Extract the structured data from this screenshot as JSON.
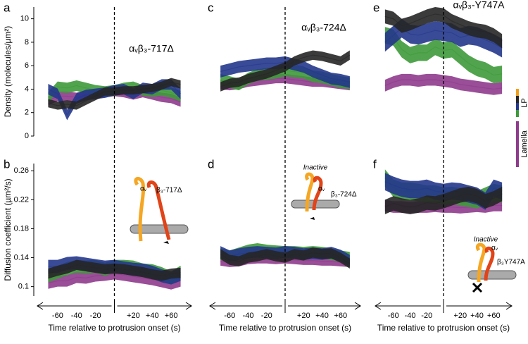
{
  "chart_data": [
    {
      "type": "band",
      "panel": "a",
      "title": "αᵥβ₃-717Δ",
      "ylabel": "Density (molecules/µm²)",
      "x": [
        -70,
        -60,
        -50,
        -40,
        -30,
        -20,
        -10,
        0,
        10,
        20,
        30,
        40,
        50,
        60,
        70
      ],
      "xlim": [
        -80,
        80
      ],
      "ylim": [
        0,
        11
      ],
      "yticks": [
        0,
        2,
        4,
        6,
        8,
        10
      ],
      "series": [
        {
          "color": "#8e3b8c",
          "error": 0.4,
          "values": [
            3.0,
            3.4,
            3.4,
            3.3,
            3.5,
            3.6,
            3.7,
            3.8,
            3.7,
            3.5,
            3.7,
            3.5,
            3.3,
            3.2,
            2.9
          ]
        },
        {
          "color": "#3e9a3a",
          "error": 0.45,
          "values": [
            3.3,
            4.2,
            4.1,
            4.3,
            4.1,
            3.9,
            3.8,
            3.9,
            4.1,
            4.2,
            3.9,
            3.8,
            3.9,
            3.7,
            3.4
          ]
        },
        {
          "color": "#24378c",
          "error": 0.45,
          "values": [
            4.0,
            3.6,
            1.8,
            3.2,
            3.5,
            3.6,
            3.7,
            3.9,
            4.0,
            3.6,
            4.1,
            4.0,
            4.4,
            4.4,
            3.6
          ]
        },
        {
          "color": "#262626",
          "error": 0.35,
          "values": [
            2.8,
            2.6,
            2.7,
            2.6,
            3.0,
            3.4,
            3.8,
            3.8,
            3.9,
            3.9,
            4.0,
            4.1,
            4.3,
            4.6,
            4.4
          ]
        }
      ]
    },
    {
      "type": "band",
      "panel": "b",
      "ylabel": "Diffusion coefficient (µm²/s)",
      "xlabel": "Time relative to protrusion onset (s)",
      "annotations": [
        "αᵥ",
        "β₃-717Δ"
      ],
      "x": [
        -70,
        -60,
        -50,
        -40,
        -30,
        -20,
        -10,
        0,
        10,
        20,
        30,
        40,
        50,
        60,
        70
      ],
      "xlim": [
        -80,
        80
      ],
      "ylim": [
        0.087,
        0.27
      ],
      "yticks": [
        0.1,
        0.14,
        0.18,
        0.22,
        0.26
      ],
      "xticks": [
        -60,
        -40,
        -20,
        {
          "value": 20,
          "label": "+20"
        },
        {
          "value": 40,
          "label": "+40"
        },
        {
          "value": 60,
          "label": "+60"
        }
      ],
      "series": [
        {
          "color": "#8e3b8c",
          "error": 0.008,
          "values": [
            0.105,
            0.108,
            0.108,
            0.113,
            0.112,
            0.115,
            0.116,
            0.118,
            0.116,
            0.114,
            0.112,
            0.11,
            0.107,
            0.104,
            0.108
          ]
        },
        {
          "color": "#3e9a3a",
          "error": 0.009,
          "values": [
            0.115,
            0.12,
            0.125,
            0.128,
            0.127,
            0.128,
            0.124,
            0.128,
            0.128,
            0.127,
            0.123,
            0.122,
            0.118,
            0.112,
            0.12
          ]
        },
        {
          "color": "#24378c",
          "error": 0.009,
          "values": [
            0.128,
            0.128,
            0.132,
            0.133,
            0.131,
            0.129,
            0.127,
            0.128,
            0.126,
            0.124,
            0.123,
            0.12,
            0.115,
            0.112,
            0.117
          ]
        },
        {
          "color": "#262626",
          "error": 0.007,
          "values": [
            0.118,
            0.122,
            0.125,
            0.13,
            0.128,
            0.126,
            0.124,
            0.125,
            0.124,
            0.122,
            0.12,
            0.117,
            0.115,
            0.118,
            0.119
          ]
        }
      ]
    },
    {
      "type": "band",
      "panel": "c",
      "title": "αᵥβ₃-724Δ",
      "x": [
        -70,
        -60,
        -50,
        -40,
        -30,
        -20,
        -10,
        0,
        10,
        20,
        30,
        40,
        50,
        60,
        70
      ],
      "xlim": [
        -80,
        80
      ],
      "ylim": [
        0,
        11
      ],
      "series": [
        {
          "color": "#8e3b8c",
          "error": 0.4,
          "values": [
            4.4,
            4.3,
            4.4,
            4.6,
            4.7,
            4.8,
            4.9,
            4.9,
            4.8,
            4.7,
            4.6,
            4.6,
            4.5,
            4.4,
            4.3
          ]
        },
        {
          "color": "#3e9a3a",
          "error": 0.5,
          "values": [
            4.8,
            4.6,
            4.4,
            4.9,
            5.2,
            5.3,
            5.4,
            5.6,
            5.5,
            5.4,
            5.1,
            5.0,
            4.8,
            4.6,
            4.5
          ]
        },
        {
          "color": "#24378c",
          "error": 0.5,
          "values": [
            5.5,
            5.7,
            5.9,
            6.0,
            6.1,
            6.2,
            6.2,
            6.3,
            6.1,
            5.9,
            5.5,
            5.2,
            4.9,
            4.8,
            4.6
          ]
        },
        {
          "color": "#262626",
          "error": 0.4,
          "values": [
            4.2,
            4.5,
            4.6,
            4.9,
            5.1,
            5.3,
            5.6,
            5.9,
            6.4,
            6.7,
            6.9,
            6.8,
            6.6,
            6.4,
            6.9
          ]
        }
      ]
    },
    {
      "type": "band",
      "panel": "d",
      "xlabel": "Time relative to protrusion onset (s)",
      "annotations": [
        "Inactive",
        "αᵥ",
        "β₃-724Δ"
      ],
      "x": [
        -70,
        -60,
        -50,
        -40,
        -30,
        -20,
        -10,
        0,
        10,
        20,
        30,
        40,
        50,
        60,
        70
      ],
      "xlim": [
        -80,
        80
      ],
      "ylim": [
        0.087,
        0.27
      ],
      "xticks": [
        -60,
        -40,
        -20,
        {
          "value": 20,
          "label": "+20"
        },
        {
          "value": 40,
          "label": "+40"
        },
        {
          "value": 60,
          "label": "+60"
        }
      ],
      "series": [
        {
          "color": "#8e3b8c",
          "error": 0.006,
          "values": [
            0.135,
            0.133,
            0.134,
            0.137,
            0.138,
            0.138,
            0.137,
            0.138,
            0.137,
            0.136,
            0.136,
            0.135,
            0.135,
            0.134,
            0.133
          ]
        },
        {
          "color": "#3e9a3a",
          "error": 0.008,
          "values": [
            0.145,
            0.142,
            0.146,
            0.15,
            0.152,
            0.15,
            0.149,
            0.148,
            0.148,
            0.147,
            0.148,
            0.147,
            0.145,
            0.142,
            0.14
          ]
        },
        {
          "color": "#24378c",
          "error": 0.008,
          "values": [
            0.148,
            0.142,
            0.145,
            0.147,
            0.148,
            0.147,
            0.146,
            0.148,
            0.147,
            0.145,
            0.146,
            0.145,
            0.147,
            0.143,
            0.136
          ]
        },
        {
          "color": "#262626",
          "error": 0.007,
          "values": [
            0.145,
            0.137,
            0.135,
            0.14,
            0.142,
            0.145,
            0.142,
            0.14,
            0.145,
            0.143,
            0.147,
            0.145,
            0.146,
            0.14,
            0.132
          ]
        }
      ]
    },
    {
      "type": "band",
      "panel": "e",
      "title": "αᵥβ₃-Y747A",
      "legend": [
        {
          "label": "LP",
          "colors": [
            "#f0a020",
            "#262626",
            "#24378c",
            "#3e9a3a"
          ]
        },
        {
          "label": "Lamella",
          "colors": [
            "#8e3b8c"
          ]
        }
      ],
      "x": [
        -70,
        -60,
        -50,
        -40,
        -30,
        -20,
        -10,
        0,
        10,
        20,
        30,
        40,
        50,
        60,
        70
      ],
      "xlim": [
        -80,
        80
      ],
      "ylim": [
        0,
        11
      ],
      "series": [
        {
          "color": "#8e3b8c",
          "error": 0.5,
          "values": [
            4.3,
            4.6,
            4.8,
            4.8,
            4.7,
            4.8,
            4.8,
            4.7,
            4.6,
            4.4,
            4.3,
            4.2,
            4.1,
            4.0,
            4.1
          ]
        },
        {
          "color": "#3e9a3a",
          "error": 0.7,
          "values": [
            8.6,
            8.4,
            7.4,
            6.9,
            7.1,
            7.1,
            7.6,
            7.3,
            7.4,
            6.8,
            6.2,
            5.8,
            5.6,
            5.2,
            5.3
          ]
        },
        {
          "color": "#24378c",
          "error": 0.8,
          "values": [
            8.0,
            8.6,
            9.2,
            8.7,
            8.6,
            8.8,
            9.0,
            8.9,
            8.8,
            8.4,
            8.6,
            8.5,
            8.2,
            7.9,
            7.5
          ]
        },
        {
          "color": "#262626",
          "error": 0.6,
          "values": [
            10.2,
            10.0,
            9.4,
            9.6,
            9.9,
            10.2,
            10.4,
            10.3,
            9.8,
            9.5,
            9.2,
            9.0,
            8.9,
            8.6,
            8.1
          ]
        }
      ]
    },
    {
      "type": "band",
      "panel": "f",
      "xlabel": "Time relative to protrusion onset (s)",
      "annotations": [
        "Inactive",
        "αᵥ",
        "β₃Y747A"
      ],
      "x": [
        -70,
        -60,
        -50,
        -40,
        -30,
        -20,
        -10,
        0,
        10,
        20,
        30,
        40,
        50,
        60,
        70
      ],
      "xlim": [
        -80,
        80
      ],
      "ylim": [
        0.087,
        0.27
      ],
      "xticks": [
        -60,
        -40,
        -20,
        {
          "value": 20,
          "label": "+20"
        },
        {
          "value": 40,
          "label": "+40"
        },
        {
          "value": 60,
          "label": "+60"
        }
      ],
      "series": [
        {
          "color": "#8e3b8c",
          "error": 0.008,
          "values": [
            0.212,
            0.21,
            0.21,
            0.209,
            0.21,
            0.21,
            0.211,
            0.21,
            0.21,
            0.209,
            0.21,
            0.211,
            0.21,
            0.212,
            0.212
          ]
        },
        {
          "color": "#3e9a3a",
          "error": 0.012,
          "values": [
            0.25,
            0.236,
            0.232,
            0.232,
            0.23,
            0.228,
            0.228,
            0.225,
            0.226,
            0.224,
            0.222,
            0.22,
            0.225,
            0.23,
            0.228
          ]
        },
        {
          "color": "#24378c",
          "error": 0.012,
          "values": [
            0.245,
            0.24,
            0.236,
            0.234,
            0.234,
            0.236,
            0.232,
            0.23,
            0.232,
            0.231,
            0.228,
            0.225,
            0.218,
            0.236,
            0.232
          ]
        },
        {
          "color": "#262626",
          "error": 0.01,
          "values": [
            0.21,
            0.215,
            0.212,
            0.21,
            0.212,
            0.216,
            0.215,
            0.218,
            0.222,
            0.226,
            0.228,
            0.225,
            0.218,
            0.222,
            0.228
          ]
        }
      ]
    }
  ]
}
